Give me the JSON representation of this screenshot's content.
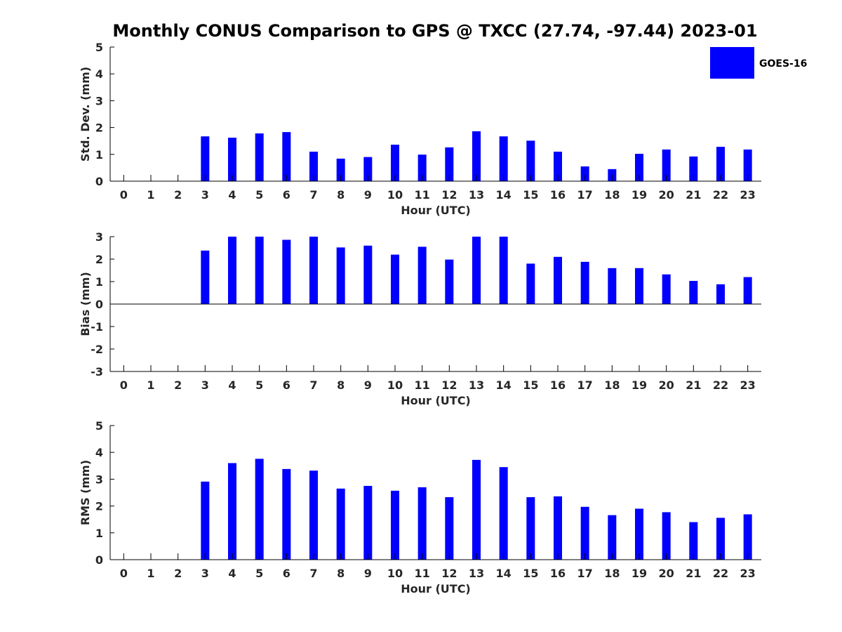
{
  "title": "Monthly CONUS Comparison to GPS @ TXCC (27.74, -97.44) 2023-01",
  "legend": {
    "label": "GOES-16",
    "color": "#0000ff",
    "position": "top-right"
  },
  "chart_data": [
    {
      "type": "bar",
      "name": "std",
      "xlabel": "Hour (UTC)",
      "ylabel": "Std. Dev. (mm)",
      "ylim": [
        0,
        5
      ],
      "yticks": [
        0,
        1,
        2,
        3,
        4,
        5
      ],
      "categories": [
        "0",
        "1",
        "2",
        "3",
        "4",
        "5",
        "6",
        "7",
        "8",
        "9",
        "10",
        "11",
        "12",
        "13",
        "14",
        "15",
        "16",
        "17",
        "18",
        "19",
        "20",
        "21",
        "22",
        "23"
      ],
      "series": [
        {
          "name": "GOES-16",
          "color": "#0000ff",
          "values": [
            null,
            null,
            null,
            1.67,
            1.62,
            1.78,
            1.83,
            1.1,
            0.84,
            0.9,
            1.36,
            0.99,
            1.26,
            1.86,
            1.67,
            1.51,
            1.1,
            0.55,
            0.45,
            1.02,
            1.18,
            0.92,
            1.28,
            1.18
          ]
        }
      ],
      "grid": false
    },
    {
      "type": "bar",
      "name": "bias",
      "xlabel": "Hour (UTC)",
      "ylabel": "Bias (mm)",
      "ylim": [
        -3,
        3
      ],
      "yticks": [
        -3,
        -2,
        -1,
        0,
        1,
        2,
        3
      ],
      "categories": [
        "0",
        "1",
        "2",
        "3",
        "4",
        "5",
        "6",
        "7",
        "8",
        "9",
        "10",
        "11",
        "12",
        "13",
        "14",
        "15",
        "16",
        "17",
        "18",
        "19",
        "20",
        "21",
        "22",
        "23"
      ],
      "series": [
        {
          "name": "GOES-16",
          "color": "#0000ff",
          "values": [
            null,
            null,
            null,
            2.38,
            3.0,
            3.0,
            2.86,
            3.0,
            2.52,
            2.6,
            2.2,
            2.55,
            1.98,
            3.0,
            3.0,
            1.8,
            2.1,
            1.88,
            1.6,
            1.6,
            1.32,
            1.03,
            0.88,
            1.2
          ]
        }
      ],
      "grid": false
    },
    {
      "type": "bar",
      "name": "rms",
      "xlabel": "Hour (UTC)",
      "ylabel": "RMS (mm)",
      "ylim": [
        0,
        5
      ],
      "yticks": [
        0,
        1,
        2,
        3,
        4,
        5
      ],
      "categories": [
        "0",
        "1",
        "2",
        "3",
        "4",
        "5",
        "6",
        "7",
        "8",
        "9",
        "10",
        "11",
        "12",
        "13",
        "14",
        "15",
        "16",
        "17",
        "18",
        "19",
        "20",
        "21",
        "22",
        "23"
      ],
      "series": [
        {
          "name": "GOES-16",
          "color": "#0000ff",
          "values": [
            null,
            null,
            null,
            2.91,
            3.6,
            3.76,
            3.38,
            3.32,
            2.65,
            2.75,
            2.57,
            2.7,
            2.33,
            3.72,
            3.45,
            2.33,
            2.36,
            1.97,
            1.66,
            1.9,
            1.77,
            1.4,
            1.56,
            1.69
          ]
        }
      ],
      "grid": false
    }
  ]
}
